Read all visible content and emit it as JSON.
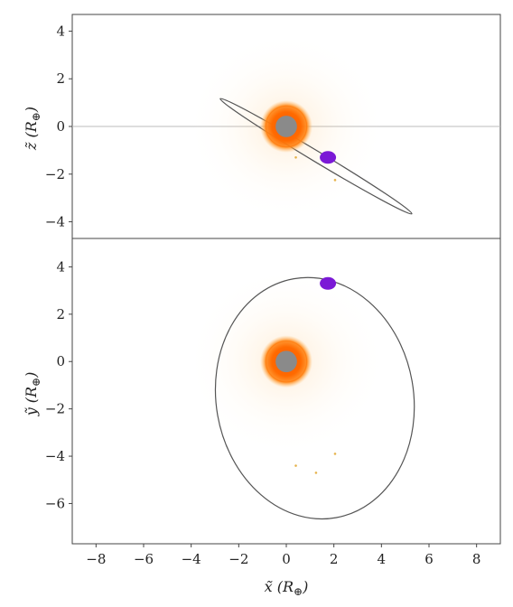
{
  "chart_data": [
    {
      "type": "scatter",
      "panel": "top",
      "xlabel": "",
      "ylabel_main": "z̃",
      "ylabel_unit": "R",
      "ylabel_sub": "⊕",
      "xlim": [
        -9,
        9
      ],
      "ylim": [
        -4.7,
        4.7
      ],
      "yticks": [
        -4,
        -2,
        0,
        2,
        4
      ],
      "ytick_labels": [
        "−4",
        "−2",
        "0",
        "2",
        "4"
      ],
      "reference_line_y": 0,
      "central_body": {
        "x": 0,
        "y": 0,
        "core_radius": 0.45,
        "halo_radius": 1.1
      },
      "satellite": {
        "x": 1.75,
        "y": -1.3
      },
      "debris": [
        {
          "x": 2.05,
          "y": -2.25
        },
        {
          "x": 0.4,
          "y": -1.3
        }
      ],
      "orbit": {
        "cx": 1.25,
        "cy": -1.25,
        "a": 4.7,
        "b": 0.22,
        "angle_deg": -31
      },
      "colors": {
        "halo": "#ff8c00",
        "core": "#8a8a8a",
        "satellite": "#7b19d6",
        "orbit": "#555555"
      }
    },
    {
      "type": "scatter",
      "panel": "bottom",
      "xlabel_main": "x̃",
      "xlabel_unit": "R",
      "xlabel_sub": "⊕",
      "ylabel_main": "ỹ",
      "ylabel_unit": "R",
      "ylabel_sub": "⊕",
      "xlim": [
        -9,
        9
      ],
      "ylim": [
        -7.7,
        5.2
      ],
      "xticks": [
        -8,
        -6,
        -4,
        -2,
        0,
        2,
        4,
        6,
        8
      ],
      "xtick_labels": [
        "−8",
        "−6",
        "−4",
        "−2",
        "0",
        "2",
        "4",
        "6",
        "8"
      ],
      "yticks": [
        -6,
        -4,
        -2,
        0,
        2,
        4
      ],
      "ytick_labels": [
        "−6",
        "−4",
        "−2",
        "0",
        "2",
        "4"
      ],
      "central_body": {
        "x": 0,
        "y": 0,
        "core_radius": 0.45,
        "halo_radius": 1.1
      },
      "satellite": {
        "x": 1.75,
        "y": 3.3
      },
      "debris": [
        {
          "x": 2.05,
          "y": -3.9
        },
        {
          "x": 0.4,
          "y": -4.4
        },
        {
          "x": 1.25,
          "y": -4.7
        }
      ],
      "orbit": {
        "cx": 1.2,
        "cy": -1.55,
        "a": 5.1,
        "b": 4.15,
        "angle_deg": -80
      },
      "colors": {
        "halo": "#ff8c00",
        "core": "#8a8a8a",
        "satellite": "#7b19d6",
        "orbit": "#555555"
      }
    }
  ]
}
